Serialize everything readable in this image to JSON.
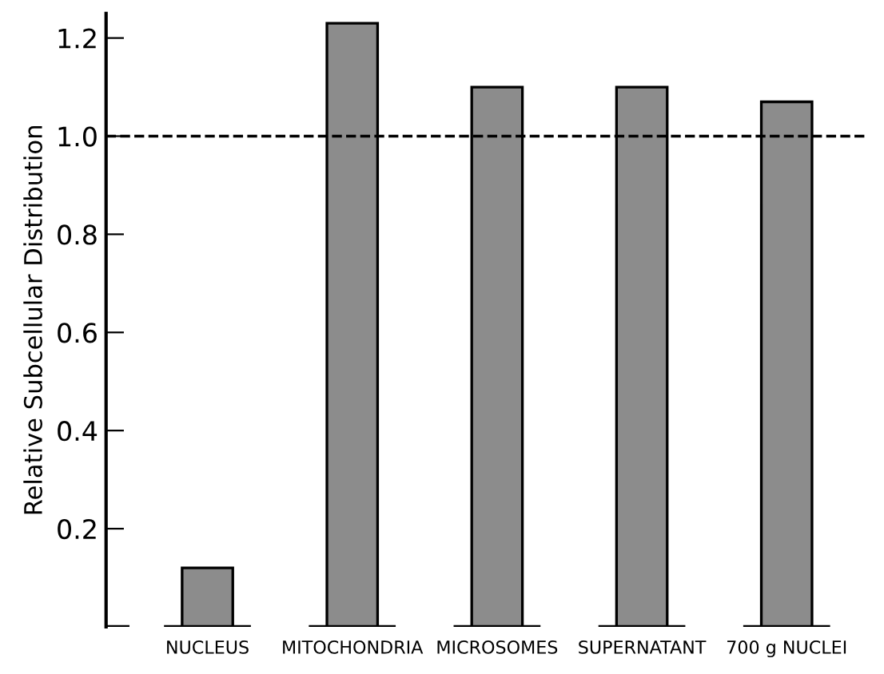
{
  "chart_data": {
    "type": "bar",
    "ylabel": "Relative Subcellular Distribution",
    "categories": [
      "NUCLEUS",
      "MITOCHONDRIA",
      "MICROSOMES",
      "SUPERNATANT",
      "700 g NUCLEI"
    ],
    "values": [
      0.12,
      1.23,
      1.1,
      1.1,
      1.07
    ],
    "color": "#8c8c8c",
    "ylim": [
      0,
      1.25
    ],
    "yticks": [
      0.2,
      0.4,
      0.6,
      0.8,
      {
        "value": 1.0,
        "label": "1.0"
      },
      1.2
    ],
    "ref_lines": [
      {
        "axis": "y",
        "value": 1.0,
        "line_style": "dashed",
        "color": "#000000"
      }
    ],
    "grid": false,
    "legend": false
  }
}
